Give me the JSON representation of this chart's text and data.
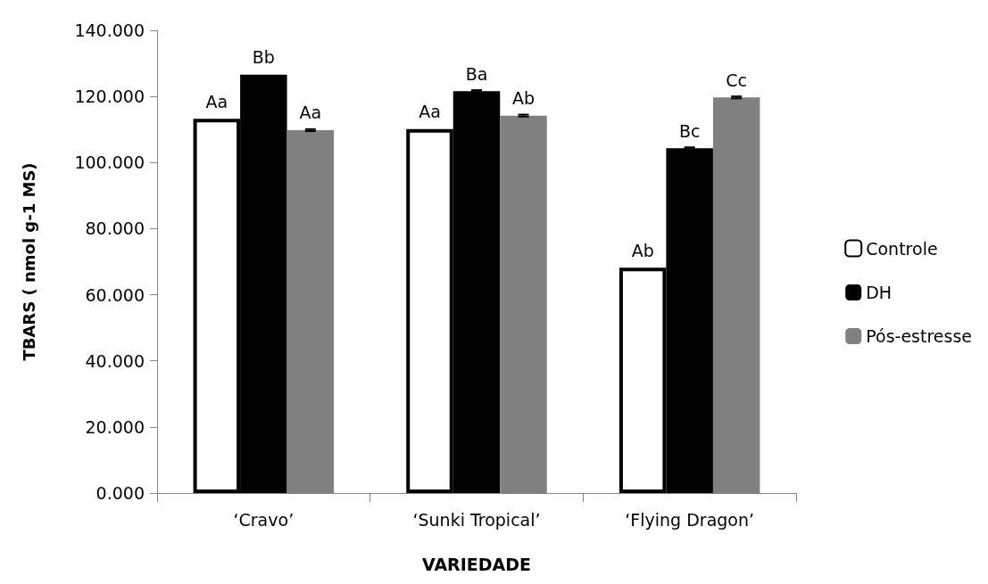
{
  "chart_data": {
    "type": "bar",
    "xlabel": "VARIEDADE",
    "ylabel": "TBARS ( nmol g-1 MS)",
    "categories": [
      "‘Cravo’",
      "‘Sunki Tropical’",
      "‘Flying Dragon’"
    ],
    "series": [
      {
        "name": "Controle",
        "color": "#ffffff",
        "values": [
          113.2,
          110.1,
          68.2
        ],
        "value_labels": [
          "Aa",
          "Aa",
          "Ab"
        ]
      },
      {
        "name": "DH",
        "color": "#000000",
        "values": [
          126.6,
          121.6,
          104.3
        ],
        "errors": [
          null,
          0.3,
          0.3
        ],
        "value_labels": [
          "Bb",
          "Ba",
          "Bc"
        ]
      },
      {
        "name": "Pós-estresse",
        "color": "#808080",
        "values": [
          109.8,
          114.2,
          119.7
        ],
        "errors": [
          0.3,
          0.3,
          0.3
        ],
        "value_labels": [
          "Aa",
          "Ab",
          "Cc"
        ]
      }
    ],
    "ylim": [
      0,
      140
    ],
    "yticks": [
      {
        "value": 0,
        "label": "0.000"
      },
      {
        "value": 20,
        "label": "20.000"
      },
      {
        "value": 40,
        "label": "40.000"
      },
      {
        "value": 60,
        "label": "60.000"
      },
      {
        "value": 80,
        "label": "80.000"
      },
      {
        "value": 100,
        "label": "100.000"
      },
      {
        "value": 120,
        "label": "120.000"
      },
      {
        "value": 140,
        "label": "140.000"
      }
    ],
    "grid": false,
    "legend": "right"
  }
}
